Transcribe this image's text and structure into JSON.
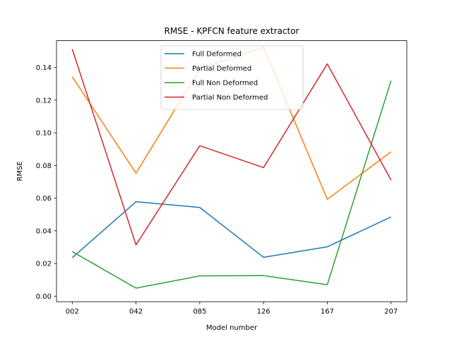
{
  "chart_data": {
    "type": "line",
    "title": "RMSE - KPFCN feature extractor",
    "xlabel": "Model number",
    "ylabel": "RMSE",
    "categories": [
      "002",
      "042",
      "085",
      "126",
      "167",
      "207"
    ],
    "ylim": [
      -0.0034,
      0.1564
    ],
    "yticks": [
      0.0,
      0.02,
      0.04,
      0.06,
      0.08,
      0.1,
      0.12,
      0.14
    ],
    "ytick_labels": [
      "0.00",
      "0.02",
      "0.04",
      "0.06",
      "0.08",
      "0.10",
      "0.12",
      "0.14"
    ],
    "grid": false,
    "legend_position": "upper center",
    "series": [
      {
        "name": "Full Deformed",
        "color": "#1f77b4",
        "values": [
          0.0235,
          0.0578,
          0.0543,
          0.0238,
          0.0302,
          0.0485
        ]
      },
      {
        "name": "Partial Deformed",
        "color": "#ff7f0e",
        "values": [
          0.1343,
          0.0753,
          0.1393,
          0.1523,
          0.0593,
          0.0884
        ]
      },
      {
        "name": "Full Non Deformed",
        "color": "#2ca02c",
        "values": [
          0.0273,
          0.0049,
          0.0124,
          0.0126,
          0.007,
          0.1319
        ]
      },
      {
        "name": "Partial Non Deformed",
        "color": "#d62728",
        "values": [
          0.1512,
          0.0314,
          0.0921,
          0.0787,
          0.1422,
          0.0711
        ]
      }
    ]
  }
}
